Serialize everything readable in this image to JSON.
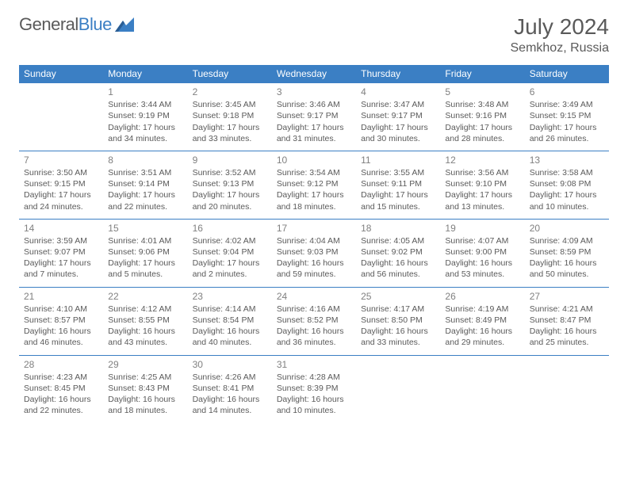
{
  "logo": {
    "word1": "General",
    "word2": "Blue"
  },
  "title": "July 2024",
  "location": "Semkhoz, Russia",
  "colors": {
    "header_bg": "#3b7fc4",
    "header_text": "#ffffff",
    "text": "#5a5a5a",
    "daynum": "#808080",
    "border": "#3b7fc4",
    "background": "#ffffff"
  },
  "weekdays": [
    "Sunday",
    "Monday",
    "Tuesday",
    "Wednesday",
    "Thursday",
    "Friday",
    "Saturday"
  ],
  "weeks": [
    [
      null,
      {
        "n": "1",
        "sr": "Sunrise: 3:44 AM",
        "ss": "Sunset: 9:19 PM",
        "dl": "Daylight: 17 hours and 34 minutes."
      },
      {
        "n": "2",
        "sr": "Sunrise: 3:45 AM",
        "ss": "Sunset: 9:18 PM",
        "dl": "Daylight: 17 hours and 33 minutes."
      },
      {
        "n": "3",
        "sr": "Sunrise: 3:46 AM",
        "ss": "Sunset: 9:17 PM",
        "dl": "Daylight: 17 hours and 31 minutes."
      },
      {
        "n": "4",
        "sr": "Sunrise: 3:47 AM",
        "ss": "Sunset: 9:17 PM",
        "dl": "Daylight: 17 hours and 30 minutes."
      },
      {
        "n": "5",
        "sr": "Sunrise: 3:48 AM",
        "ss": "Sunset: 9:16 PM",
        "dl": "Daylight: 17 hours and 28 minutes."
      },
      {
        "n": "6",
        "sr": "Sunrise: 3:49 AM",
        "ss": "Sunset: 9:15 PM",
        "dl": "Daylight: 17 hours and 26 minutes."
      }
    ],
    [
      {
        "n": "7",
        "sr": "Sunrise: 3:50 AM",
        "ss": "Sunset: 9:15 PM",
        "dl": "Daylight: 17 hours and 24 minutes."
      },
      {
        "n": "8",
        "sr": "Sunrise: 3:51 AM",
        "ss": "Sunset: 9:14 PM",
        "dl": "Daylight: 17 hours and 22 minutes."
      },
      {
        "n": "9",
        "sr": "Sunrise: 3:52 AM",
        "ss": "Sunset: 9:13 PM",
        "dl": "Daylight: 17 hours and 20 minutes."
      },
      {
        "n": "10",
        "sr": "Sunrise: 3:54 AM",
        "ss": "Sunset: 9:12 PM",
        "dl": "Daylight: 17 hours and 18 minutes."
      },
      {
        "n": "11",
        "sr": "Sunrise: 3:55 AM",
        "ss": "Sunset: 9:11 PM",
        "dl": "Daylight: 17 hours and 15 minutes."
      },
      {
        "n": "12",
        "sr": "Sunrise: 3:56 AM",
        "ss": "Sunset: 9:10 PM",
        "dl": "Daylight: 17 hours and 13 minutes."
      },
      {
        "n": "13",
        "sr": "Sunrise: 3:58 AM",
        "ss": "Sunset: 9:08 PM",
        "dl": "Daylight: 17 hours and 10 minutes."
      }
    ],
    [
      {
        "n": "14",
        "sr": "Sunrise: 3:59 AM",
        "ss": "Sunset: 9:07 PM",
        "dl": "Daylight: 17 hours and 7 minutes."
      },
      {
        "n": "15",
        "sr": "Sunrise: 4:01 AM",
        "ss": "Sunset: 9:06 PM",
        "dl": "Daylight: 17 hours and 5 minutes."
      },
      {
        "n": "16",
        "sr": "Sunrise: 4:02 AM",
        "ss": "Sunset: 9:04 PM",
        "dl": "Daylight: 17 hours and 2 minutes."
      },
      {
        "n": "17",
        "sr": "Sunrise: 4:04 AM",
        "ss": "Sunset: 9:03 PM",
        "dl": "Daylight: 16 hours and 59 minutes."
      },
      {
        "n": "18",
        "sr": "Sunrise: 4:05 AM",
        "ss": "Sunset: 9:02 PM",
        "dl": "Daylight: 16 hours and 56 minutes."
      },
      {
        "n": "19",
        "sr": "Sunrise: 4:07 AM",
        "ss": "Sunset: 9:00 PM",
        "dl": "Daylight: 16 hours and 53 minutes."
      },
      {
        "n": "20",
        "sr": "Sunrise: 4:09 AM",
        "ss": "Sunset: 8:59 PM",
        "dl": "Daylight: 16 hours and 50 minutes."
      }
    ],
    [
      {
        "n": "21",
        "sr": "Sunrise: 4:10 AM",
        "ss": "Sunset: 8:57 PM",
        "dl": "Daylight: 16 hours and 46 minutes."
      },
      {
        "n": "22",
        "sr": "Sunrise: 4:12 AM",
        "ss": "Sunset: 8:55 PM",
        "dl": "Daylight: 16 hours and 43 minutes."
      },
      {
        "n": "23",
        "sr": "Sunrise: 4:14 AM",
        "ss": "Sunset: 8:54 PM",
        "dl": "Daylight: 16 hours and 40 minutes."
      },
      {
        "n": "24",
        "sr": "Sunrise: 4:16 AM",
        "ss": "Sunset: 8:52 PM",
        "dl": "Daylight: 16 hours and 36 minutes."
      },
      {
        "n": "25",
        "sr": "Sunrise: 4:17 AM",
        "ss": "Sunset: 8:50 PM",
        "dl": "Daylight: 16 hours and 33 minutes."
      },
      {
        "n": "26",
        "sr": "Sunrise: 4:19 AM",
        "ss": "Sunset: 8:49 PM",
        "dl": "Daylight: 16 hours and 29 minutes."
      },
      {
        "n": "27",
        "sr": "Sunrise: 4:21 AM",
        "ss": "Sunset: 8:47 PM",
        "dl": "Daylight: 16 hours and 25 minutes."
      }
    ],
    [
      {
        "n": "28",
        "sr": "Sunrise: 4:23 AM",
        "ss": "Sunset: 8:45 PM",
        "dl": "Daylight: 16 hours and 22 minutes."
      },
      {
        "n": "29",
        "sr": "Sunrise: 4:25 AM",
        "ss": "Sunset: 8:43 PM",
        "dl": "Daylight: 16 hours and 18 minutes."
      },
      {
        "n": "30",
        "sr": "Sunrise: 4:26 AM",
        "ss": "Sunset: 8:41 PM",
        "dl": "Daylight: 16 hours and 14 minutes."
      },
      {
        "n": "31",
        "sr": "Sunrise: 4:28 AM",
        "ss": "Sunset: 8:39 PM",
        "dl": "Daylight: 16 hours and 10 minutes."
      },
      null,
      null,
      null
    ]
  ]
}
